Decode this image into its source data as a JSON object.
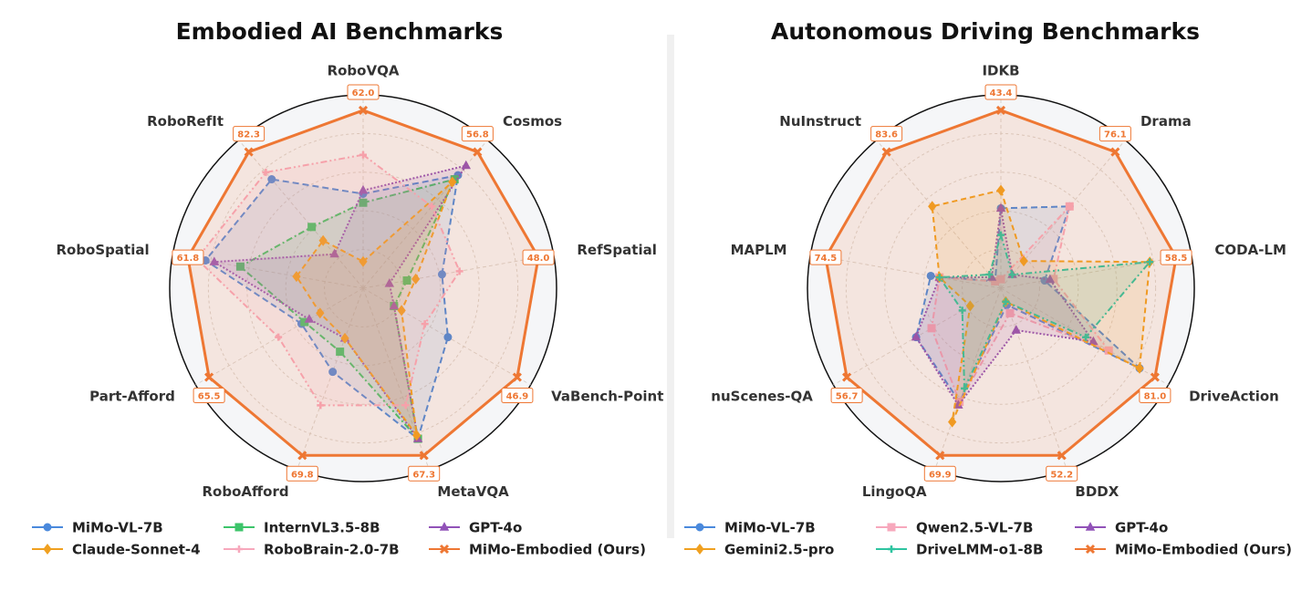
{
  "chart_data": [
    {
      "type": "radar",
      "title": "Embodied AI Benchmarks",
      "categories": [
        "RoboVQA",
        "Cosmos",
        "RefSpatial",
        "VaBench-Point",
        "MetaVQA",
        "RoboAfford",
        "Part-Afford",
        "RoboSpatial",
        "RoboRefIt"
      ],
      "series": [
        {
          "name": "MiMo-VL-7B",
          "color": "#4a89dc",
          "marker": "circle",
          "dash": "7 4",
          "values": [
            32.9,
            47.1,
            21.6,
            25.8,
            60.6,
            34.9,
            26.2,
            55.6,
            65.8
          ]
        },
        {
          "name": "InternVL3.5-8B",
          "color": "#3cc46a",
          "marker": "square",
          "dash": "7 3 2 3",
          "values": [
            29.8,
            45.4,
            12.0,
            9.4,
            60.6,
            26.5,
            24.9,
            43.3,
            37.0
          ]
        },
        {
          "name": "GPT-4o",
          "color": "#9152b8",
          "marker": "triangle",
          "dash": "2 2",
          "values": [
            34.1,
            51.1,
            7.2,
            9.4,
            60.6,
            20.9,
            22.9,
            52.5,
            20.6
          ]
        },
        {
          "name": "Claude-Sonnet-4",
          "color": "#f0a020",
          "marker": "diamond",
          "dash": "6 4",
          "values": [
            9.3,
            44.3,
            14.4,
            11.7,
            59.2,
            20.9,
            18.3,
            23.5,
            28.8
          ]
        },
        {
          "name": "RoboBrain-2.0-7B",
          "color": "#f7a8bc",
          "marker": "plus",
          "dash": "7 3 2 3 2 3",
          "values": [
            46.5,
            34.1,
            26.4,
            18.8,
            47.1,
            48.9,
            36.0,
            58.7,
            70.0
          ]
        },
        {
          "name": "MiMo-Embodied (Ours)",
          "color": "#ee7733",
          "marker": "x",
          "values": [
            62.0,
            56.8,
            48.0,
            46.9,
            67.3,
            69.8,
            65.5,
            61.8,
            82.3
          ],
          "value_labels": [
            "62.0",
            "56.8",
            "48.0",
            "46.9",
            "67.3",
            "69.8",
            "65.5",
            "61.8",
            "82.3"
          ]
        }
      ]
    },
    {
      "type": "radar",
      "title": "Autonomous Driving Benchmarks",
      "categories": [
        "IDKB",
        "Drama",
        "CODA-LM",
        "DriveAction",
        "BDDX",
        "LingoQA",
        "nuScenes-QA",
        "MAPLM",
        "NuInstruct"
      ],
      "series": [
        {
          "name": "MiMo-VL-7B",
          "color": "#4a89dc",
          "marker": "circle",
          "dash": "7 4",
          "values": [
            19.5,
            45.7,
            14.6,
            72.9,
            5.2,
            47.5,
            31.2,
            29.8,
            4.2
          ]
        },
        {
          "name": "Qwen2.5-VL-7B",
          "color": "#f7a8bc",
          "marker": "square",
          "dash": "7 3 2 3",
          "values": [
            2.2,
            45.7,
            17.6,
            56.7,
            7.8,
            47.5,
            25.5,
            26.1,
            4.2
          ]
        },
        {
          "name": "GPT-4o",
          "color": "#9152b8",
          "marker": "triangle",
          "dash": "2 2",
          "values": [
            19.5,
            7.6,
            16.4,
            48.6,
            13.1,
            48.9,
            31.2,
            26.1,
            6.7
          ]
        },
        {
          "name": "Gemini2.5-pro",
          "color": "#f0a020",
          "marker": "diamond",
          "dash": "6 4",
          "values": [
            23.9,
            15.2,
            49.7,
            72.9,
            4.2,
            55.9,
            11.3,
            26.1,
            50.2
          ]
        },
        {
          "name": "DriveLMM-o1-8B",
          "color": "#2ec4a0",
          "marker": "plus",
          "dash": "7 3 2 3 2 3",
          "values": [
            13.0,
            7.6,
            49.7,
            44.6,
            4.2,
            41.9,
            14.2,
            26.1,
            8.4
          ]
        },
        {
          "name": "MiMo-Embodied (Ours)",
          "color": "#ee7733",
          "marker": "x",
          "values": [
            43.4,
            76.1,
            58.5,
            81.0,
            52.2,
            69.9,
            56.7,
            74.5,
            83.6
          ],
          "value_labels": [
            "43.4",
            "76.1",
            "58.5",
            "81.0",
            "52.2",
            "69.9",
            "56.7",
            "74.5",
            "83.6"
          ]
        }
      ]
    }
  ]
}
